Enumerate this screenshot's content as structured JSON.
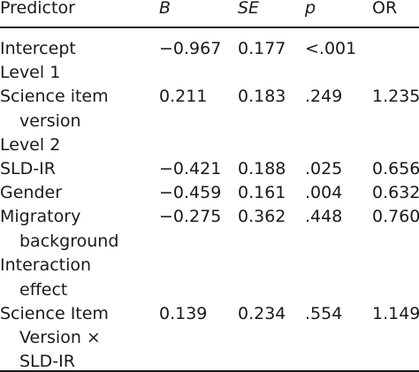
{
  "table": {
    "headers": {
      "predictor": "Predictor",
      "b": "B",
      "se": "SE",
      "p": "p",
      "or": "OR"
    },
    "rows": [
      {
        "label": [
          "Intercept"
        ],
        "b": "−0.967",
        "se": "0.177",
        "p": "<.001",
        "or": ""
      },
      {
        "label": [
          "Level 1"
        ],
        "b": "",
        "se": "",
        "p": "",
        "or": ""
      },
      {
        "label": [
          "Science item",
          "version"
        ],
        "b": "0.211",
        "se": "0.183",
        "p": ".249",
        "or": "1.235"
      },
      {
        "label": [
          "Level 2"
        ],
        "b": "",
        "se": "",
        "p": "",
        "or": ""
      },
      {
        "label": [
          "SLD-IR"
        ],
        "b": "−0.421",
        "se": "0.188",
        "p": ".025",
        "or": "0.656"
      },
      {
        "label": [
          "Gender"
        ],
        "b": "−0.459",
        "se": "0.161",
        "p": ".004",
        "or": "0.632"
      },
      {
        "label": [
          "Migratory",
          "background"
        ],
        "b": "−0.275",
        "se": "0.362",
        "p": ".448",
        "or": "0.760"
      },
      {
        "label": [
          "Interaction",
          "effect"
        ],
        "b": "",
        "se": "",
        "p": "",
        "or": ""
      },
      {
        "label": [
          "Science Item",
          "Version ×",
          "SLD-IR"
        ],
        "b": "0.139",
        "se": "0.234",
        "p": ".554",
        "or": "1.149"
      }
    ]
  }
}
